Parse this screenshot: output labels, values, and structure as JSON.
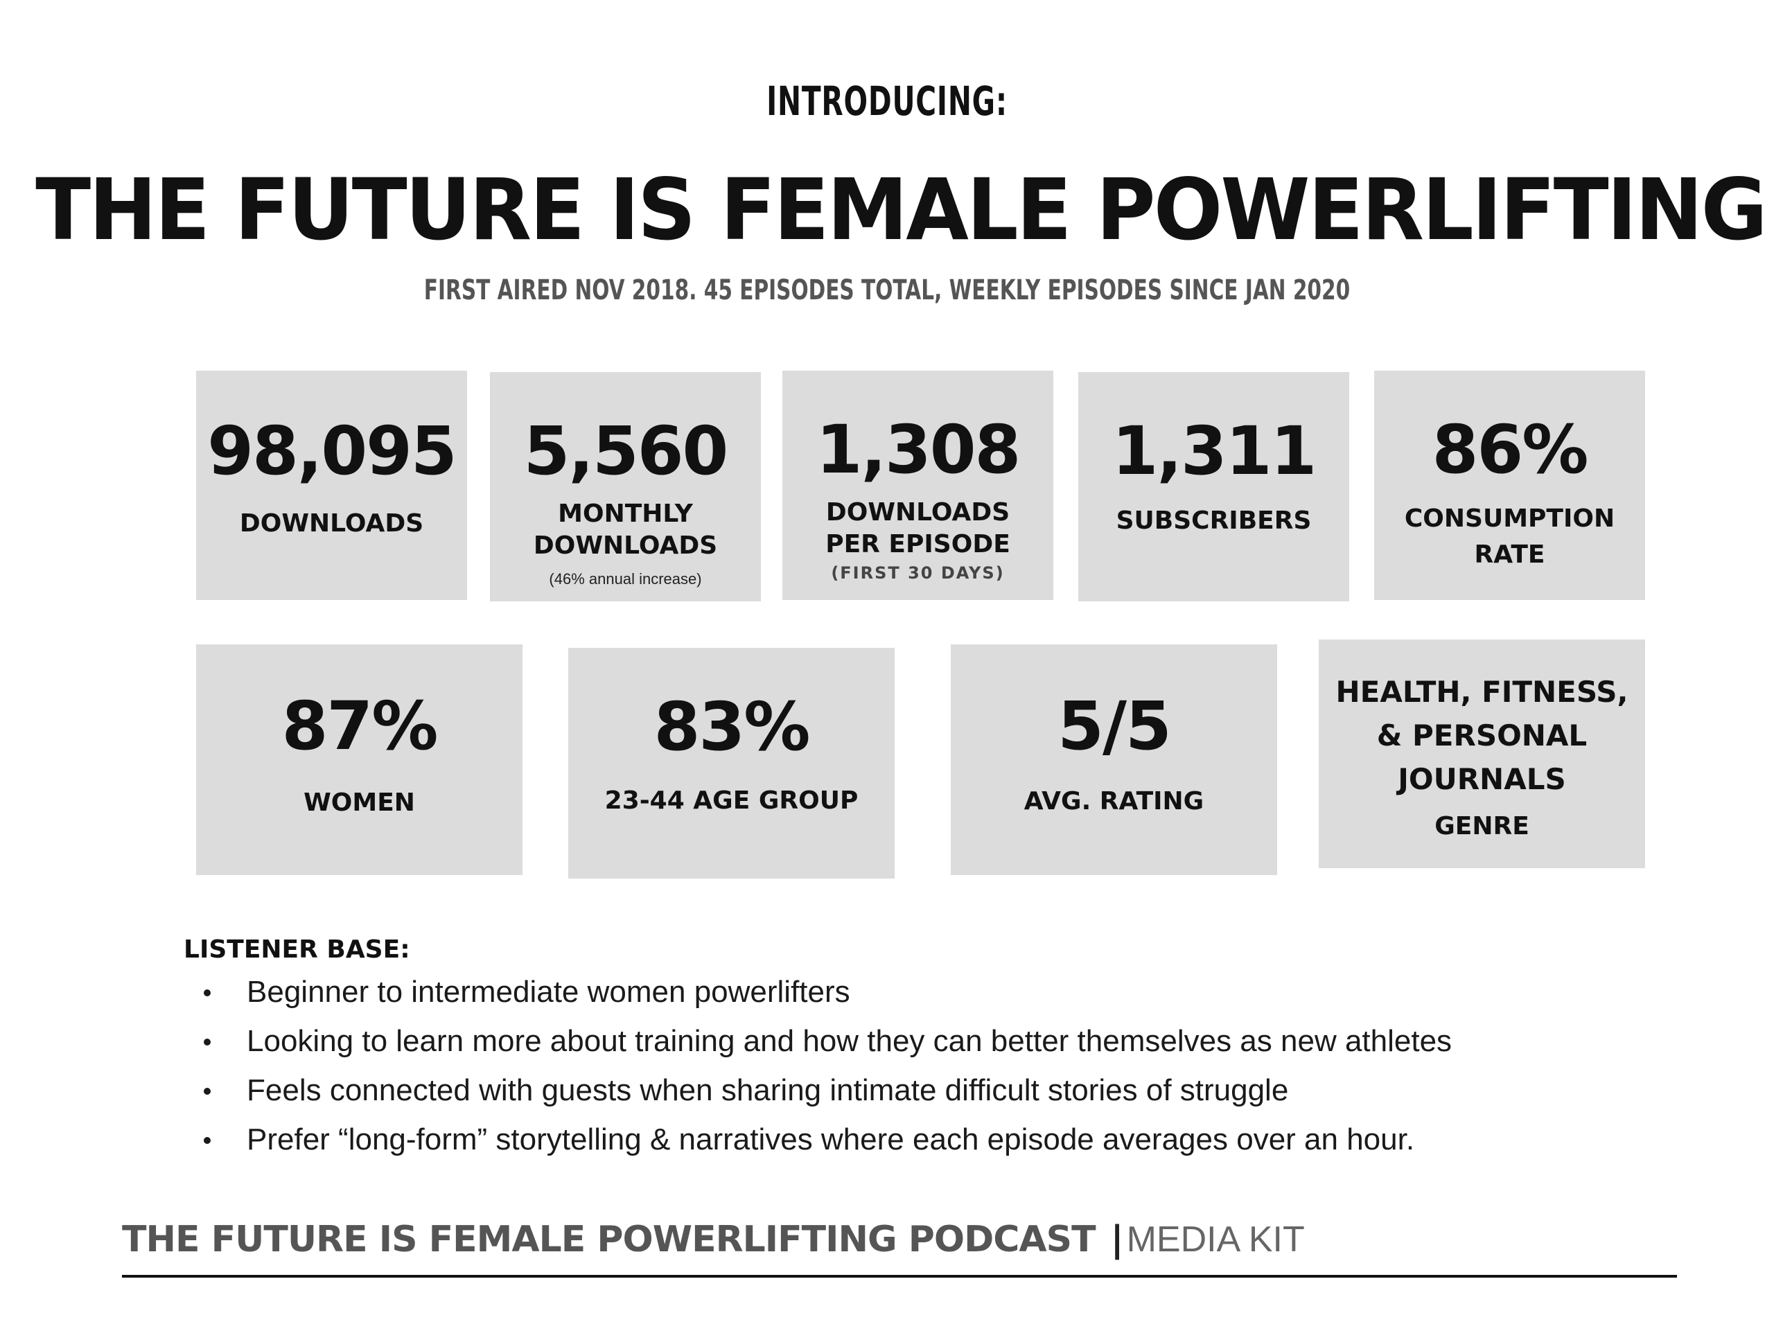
{
  "header": {
    "intro": "INTRODUCING:",
    "title": "THE FUTURE IS FEMALE POWERLIFTING",
    "subtitle": "FIRST AIRED NOV 2018. 45 EPISODES TOTAL, WEEKLY EPISODES SINCE JAN  2020"
  },
  "stats_row1": [
    {
      "value": "98,095",
      "label": "DOWNLOADS"
    },
    {
      "value": "5,560",
      "label": "MONTHLY\nDOWNLOADS",
      "note": "(46% annual increase)"
    },
    {
      "value": "1,308",
      "label": "DOWNLOADS\nPER EPISODE",
      "note": "(FIRST 30 DAYS)"
    },
    {
      "value": "1,311",
      "label": "SUBSCRIBERS"
    },
    {
      "value": "86%",
      "label": "CONSUMPTION\nRATE"
    }
  ],
  "stats_row2": [
    {
      "value": "87%",
      "label": "WOMEN"
    },
    {
      "value": "83%",
      "label": "23-44 AGE GROUP"
    },
    {
      "value": "5/5",
      "label": "AVG. RATING"
    },
    {
      "value": "HEALTH, FITNESS,\n& PERSONAL\nJOURNALS",
      "label": "GENRE"
    }
  ],
  "listener_base": {
    "heading": "LISTENER BASE:",
    "items": [
      "Beginner to intermediate women powerlifters",
      "Looking to learn more about training and how they can better themselves as new athletes",
      "Feels connected with guests when sharing intimate difficult stories of struggle",
      "Prefer “long-form” storytelling & narratives where each episode averages over an hour."
    ]
  },
  "footer": {
    "title": "THE FUTURE IS FEMALE POWERLIFTING PODCAST",
    "separator": "|",
    "subtitle": "MEDIA KIT"
  },
  "colors": {
    "card_background": "#dcdcdc",
    "text_dark": "#111111",
    "text_gray": "#555555"
  }
}
